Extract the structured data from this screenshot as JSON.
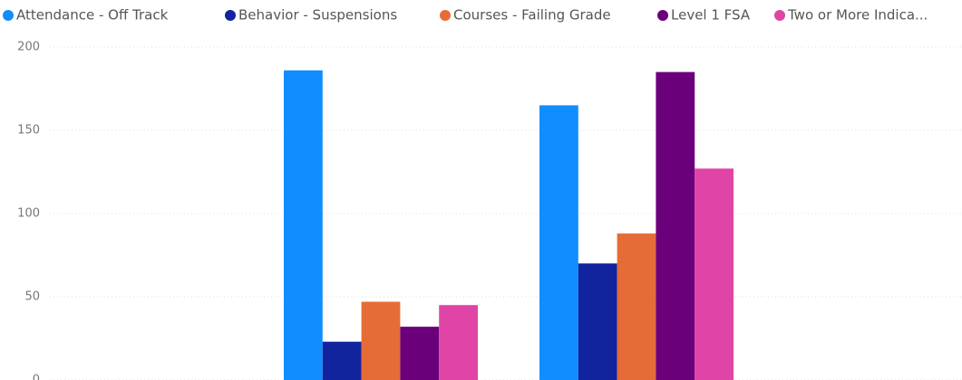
{
  "chart_data": {
    "type": "bar",
    "categories": [
      null,
      null
    ],
    "series": [
      {
        "name": "Attendance - Off Track",
        "color": "#118DFF",
        "values": [
          186,
          165
        ]
      },
      {
        "name": "Behavior - Suspensions",
        "color": "#12239E",
        "values": [
          23,
          70
        ]
      },
      {
        "name": "Courses - Failing Grade",
        "color": "#E66C37",
        "values": [
          47,
          88
        ]
      },
      {
        "name": "Level 1 FSA",
        "color": "#6B007B",
        "values": [
          32,
          185
        ]
      },
      {
        "name": "Two or More Indica...",
        "color": "#E044A7",
        "values": [
          45,
          127
        ]
      }
    ],
    "ylim": [
      0,
      200
    ],
    "yticks": [
      0,
      50,
      100,
      150,
      200
    ],
    "grid": true,
    "legend": "top"
  }
}
